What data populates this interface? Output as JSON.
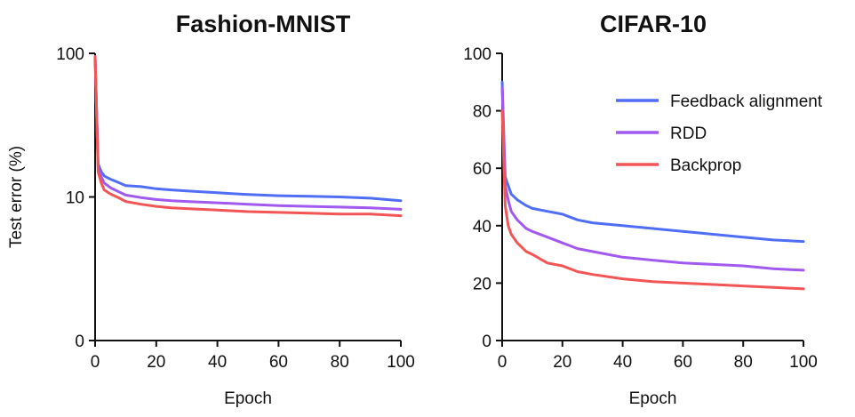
{
  "chart_data": [
    {
      "type": "line",
      "title": "Fashion-MNIST",
      "xlabel": "Epoch",
      "ylabel": "Test error (%)",
      "xlim": [
        0,
        100
      ],
      "yscale": "log",
      "ylim_labels": [
        "0",
        "10",
        "100"
      ],
      "xticks": [
        0,
        20,
        40,
        60,
        80,
        100
      ],
      "xtick_labels": [
        "0",
        "20",
        "40",
        "60",
        "80",
        "100"
      ],
      "yticks": [
        1,
        10,
        100
      ],
      "ytick_labels": [
        "0",
        "10",
        "100"
      ],
      "grid": false,
      "series": [
        {
          "name": "Feedback alignment",
          "color": "#4f6ef5",
          "x": [
            0,
            1,
            2,
            3,
            5,
            8,
            10,
            15,
            20,
            25,
            30,
            40,
            50,
            60,
            70,
            80,
            90,
            100
          ],
          "y": [
            95,
            17,
            15,
            14,
            13.3,
            12.5,
            12,
            11.8,
            11.4,
            11.2,
            11,
            10.7,
            10.4,
            10.2,
            10.1,
            10,
            9.8,
            9.4
          ]
        },
        {
          "name": "RDD",
          "color": "#a259f0",
          "x": [
            0,
            1,
            2,
            3,
            5,
            8,
            10,
            15,
            20,
            25,
            30,
            40,
            50,
            60,
            70,
            80,
            90,
            100
          ],
          "y": [
            95,
            16,
            13.8,
            12.5,
            11.6,
            10.8,
            10.3,
            9.9,
            9.6,
            9.4,
            9.3,
            9.1,
            8.9,
            8.7,
            8.6,
            8.5,
            8.4,
            8.2
          ]
        },
        {
          "name": "Backprop",
          "color": "#f25555",
          "x": [
            0,
            1,
            2,
            3,
            5,
            8,
            10,
            15,
            20,
            25,
            30,
            40,
            50,
            60,
            70,
            80,
            90,
            100
          ],
          "y": [
            95,
            15,
            12.5,
            11.2,
            10.5,
            9.8,
            9.3,
            8.9,
            8.6,
            8.4,
            8.3,
            8.1,
            7.9,
            7.8,
            7.7,
            7.6,
            7.6,
            7.4
          ]
        }
      ]
    },
    {
      "type": "line",
      "title": "CIFAR-10",
      "xlabel": "Epoch",
      "ylabel": "",
      "xlim": [
        0,
        100
      ],
      "ylim": [
        0,
        100
      ],
      "xticks": [
        0,
        20,
        40,
        60,
        80,
        100
      ],
      "xtick_labels": [
        "0",
        "20",
        "40",
        "60",
        "80",
        "100"
      ],
      "yticks": [
        0,
        20,
        40,
        60,
        80,
        100
      ],
      "ytick_labels": [
        "0",
        "20",
        "40",
        "60",
        "80",
        "100"
      ],
      "grid": false,
      "legend": "top-right",
      "series": [
        {
          "name": "Feedback alignment",
          "color": "#4f6ef5",
          "x": [
            0,
            1,
            2,
            3,
            5,
            8,
            10,
            15,
            20,
            25,
            30,
            40,
            50,
            60,
            70,
            80,
            90,
            100
          ],
          "y": [
            90,
            57,
            54,
            51,
            49,
            47,
            46,
            45,
            44,
            42,
            41,
            40,
            39,
            38,
            37,
            36,
            35,
            34.5
          ]
        },
        {
          "name": "RDD",
          "color": "#a259f0",
          "x": [
            0,
            1,
            2,
            3,
            5,
            8,
            10,
            15,
            20,
            25,
            30,
            40,
            50,
            60,
            70,
            80,
            90,
            100
          ],
          "y": [
            88,
            54,
            49,
            45,
            42,
            39,
            38,
            36,
            34,
            32,
            31,
            29,
            28,
            27,
            26.5,
            26,
            25,
            24.5
          ]
        },
        {
          "name": "Backprop",
          "color": "#f25555",
          "x": [
            0,
            1,
            2,
            3,
            5,
            8,
            10,
            15,
            20,
            25,
            30,
            40,
            50,
            60,
            70,
            80,
            90,
            100
          ],
          "y": [
            80,
            47,
            40,
            37,
            34,
            31,
            30,
            27,
            26,
            24,
            23,
            21.5,
            20.5,
            20,
            19.5,
            19,
            18.5,
            18
          ]
        }
      ]
    }
  ]
}
